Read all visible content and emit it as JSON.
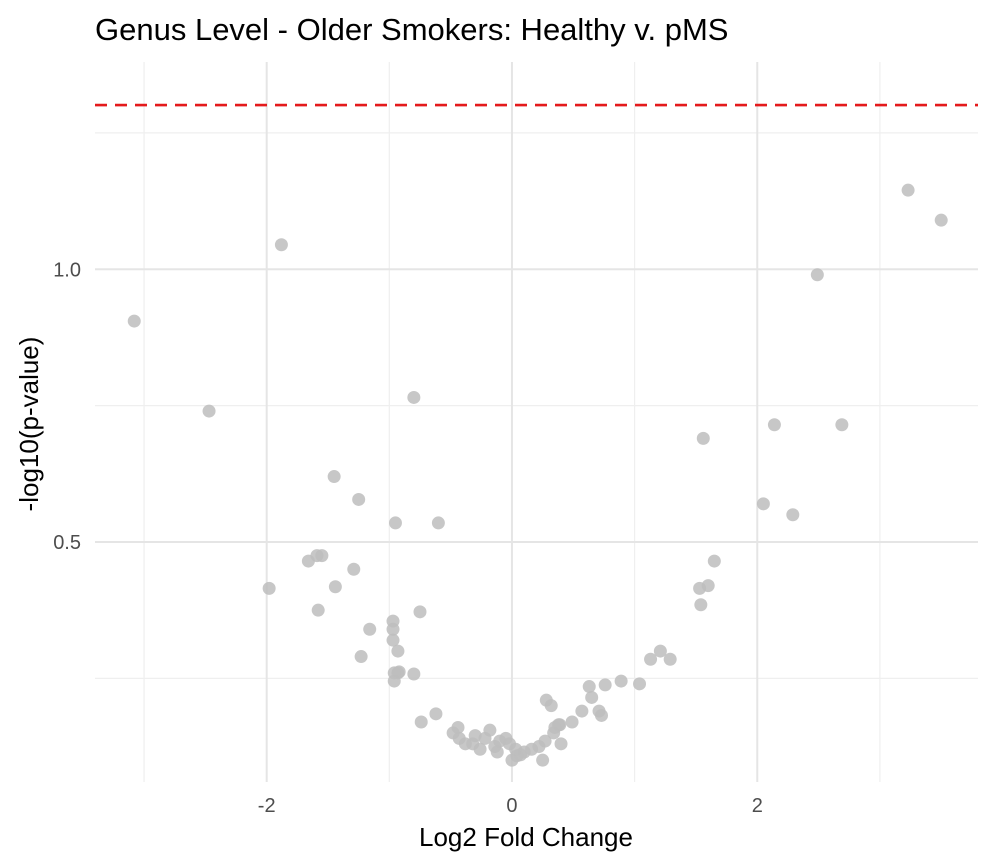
{
  "chart_data": {
    "type": "scatter",
    "title": "Genus Level - Older Smokers: Healthy v. pMS",
    "xlabel": "Log2 Fold Change",
    "ylabel": "-log10(p-value)",
    "xlim": [
      -3.4,
      3.8
    ],
    "ylim": [
      0.06,
      1.38
    ],
    "x_ticks": [
      -2,
      0,
      2
    ],
    "x_tick_labels": [
      "-2",
      "0",
      "2"
    ],
    "x_minor_ticks": [
      -3,
      -1,
      1,
      3
    ],
    "y_ticks": [
      0.5,
      1.0
    ],
    "y_tick_labels": [
      "0.5",
      "1.0"
    ],
    "y_minor_ticks": [
      0.25,
      0.75,
      1.25
    ],
    "grid": true,
    "legend": "none",
    "threshold_line": {
      "y": 1.301,
      "style": "dashed",
      "color": "#e41a1c"
    },
    "point_color": "#bdbdbd",
    "points": [
      [
        -3.08,
        0.905
      ],
      [
        -2.47,
        0.74
      ],
      [
        -1.88,
        1.045
      ],
      [
        -1.98,
        0.415
      ],
      [
        -1.66,
        0.465
      ],
      [
        -1.59,
        0.475
      ],
      [
        -1.55,
        0.475
      ],
      [
        -1.58,
        0.375
      ],
      [
        -1.45,
        0.62
      ],
      [
        -1.44,
        0.418
      ],
      [
        -1.29,
        0.45
      ],
      [
        -1.25,
        0.578
      ],
      [
        -1.23,
        0.29
      ],
      [
        -1.16,
        0.34
      ],
      [
        -0.95,
        0.535
      ],
      [
        -0.97,
        0.355
      ],
      [
        -0.97,
        0.34
      ],
      [
        -0.97,
        0.32
      ],
      [
        -0.93,
        0.3
      ],
      [
        -0.96,
        0.26
      ],
      [
        -0.93,
        0.26
      ],
      [
        -0.92,
        0.262
      ],
      [
        -0.96,
        0.245
      ],
      [
        -0.8,
        0.765
      ],
      [
        -0.75,
        0.372
      ],
      [
        -0.8,
        0.258
      ],
      [
        -0.6,
        0.535
      ],
      [
        -0.74,
        0.17
      ],
      [
        -0.62,
        0.185
      ],
      [
        -0.48,
        0.15
      ],
      [
        -0.44,
        0.16
      ],
      [
        -0.43,
        0.14
      ],
      [
        -0.38,
        0.13
      ],
      [
        -0.32,
        0.13
      ],
      [
        -0.3,
        0.145
      ],
      [
        -0.26,
        0.12
      ],
      [
        -0.22,
        0.14
      ],
      [
        -0.18,
        0.155
      ],
      [
        -0.14,
        0.125
      ],
      [
        -0.12,
        0.115
      ],
      [
        -0.1,
        0.135
      ],
      [
        -0.05,
        0.14
      ],
      [
        -0.02,
        0.13
      ],
      [
        0.0,
        0.1
      ],
      [
        0.03,
        0.12
      ],
      [
        0.04,
        0.108
      ],
      [
        0.07,
        0.11
      ],
      [
        0.1,
        0.115
      ],
      [
        0.16,
        0.12
      ],
      [
        0.22,
        0.125
      ],
      [
        0.25,
        0.1
      ],
      [
        0.27,
        0.135
      ],
      [
        0.28,
        0.21
      ],
      [
        0.32,
        0.2
      ],
      [
        0.34,
        0.15
      ],
      [
        0.35,
        0.16
      ],
      [
        0.38,
        0.165
      ],
      [
        0.39,
        0.165
      ],
      [
        0.4,
        0.13
      ],
      [
        0.49,
        0.17
      ],
      [
        0.57,
        0.19
      ],
      [
        0.63,
        0.235
      ],
      [
        0.65,
        0.215
      ],
      [
        0.71,
        0.19
      ],
      [
        0.73,
        0.182
      ],
      [
        0.76,
        0.238
      ],
      [
        0.89,
        0.245
      ],
      [
        1.04,
        0.24
      ],
      [
        1.13,
        0.285
      ],
      [
        1.21,
        0.3
      ],
      [
        1.29,
        0.285
      ],
      [
        1.53,
        0.415
      ],
      [
        1.54,
        0.385
      ],
      [
        1.56,
        0.69
      ],
      [
        1.6,
        0.42
      ],
      [
        1.65,
        0.465
      ],
      [
        2.05,
        0.57
      ],
      [
        2.14,
        0.715
      ],
      [
        2.29,
        0.55
      ],
      [
        2.49,
        0.99
      ],
      [
        2.69,
        0.715
      ],
      [
        3.23,
        1.145
      ],
      [
        3.5,
        1.09
      ]
    ]
  }
}
